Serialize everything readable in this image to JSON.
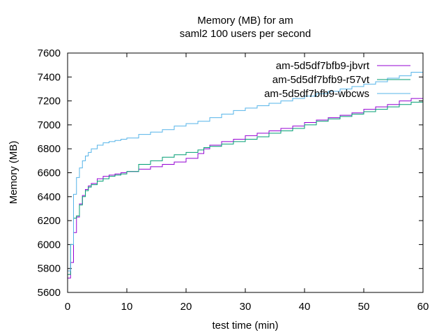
{
  "chart_data": {
    "type": "line",
    "title": "Memory (MB) for am",
    "subtitle": "saml2 100 users per second",
    "xlabel": "test time (min)",
    "ylabel": "Memory (MB)",
    "xlim": [
      0,
      60
    ],
    "ylim": [
      5600,
      7600
    ],
    "xticks": [
      0,
      10,
      20,
      30,
      40,
      50,
      60
    ],
    "yticks": [
      5600,
      5800,
      6000,
      6200,
      6400,
      6600,
      6800,
      7000,
      7200,
      7400,
      7600
    ],
    "grid": false,
    "legend_position": "top-right",
    "step": true,
    "series": [
      {
        "name": "am-5d5df7bfb9-jbvrt",
        "color": "#9400d3",
        "x": [
          0,
          0.5,
          1,
          1.5,
          2,
          2.5,
          3,
          3.5,
          4,
          5,
          6,
          7,
          8,
          9,
          10,
          12,
          14,
          16,
          18,
          20,
          22,
          23,
          24,
          26,
          28,
          30,
          32,
          34,
          36,
          38,
          40,
          42,
          44,
          46,
          48,
          50,
          52,
          54,
          56,
          58,
          60
        ],
        "y": [
          5720,
          5850,
          6100,
          6230,
          6340,
          6410,
          6460,
          6490,
          6510,
          6550,
          6570,
          6580,
          6590,
          6600,
          6610,
          6630,
          6650,
          6670,
          6690,
          6720,
          6760,
          6800,
          6830,
          6860,
          6880,
          6910,
          6930,
          6950,
          6970,
          6990,
          7020,
          7040,
          7060,
          7080,
          7100,
          7130,
          7150,
          7170,
          7200,
          7220,
          7240
        ]
      },
      {
        "name": "am-5d5df7bfb9-r57vt",
        "color": "#009e73",
        "x": [
          0,
          0.5,
          1,
          1.5,
          2,
          2.5,
          3,
          3.5,
          4,
          5,
          6,
          7,
          8,
          9,
          10,
          12,
          14,
          16,
          18,
          20,
          22,
          23,
          24,
          26,
          28,
          30,
          32,
          34,
          36,
          38,
          40,
          42,
          44,
          46,
          48,
          50,
          52,
          54,
          56,
          58,
          60
        ],
        "y": [
          5750,
          6000,
          6220,
          6240,
          6330,
          6400,
          6450,
          6480,
          6500,
          6530,
          6550,
          6570,
          6580,
          6590,
          6610,
          6670,
          6700,
          6730,
          6750,
          6770,
          6790,
          6810,
          6820,
          6840,
          6860,
          6880,
          6900,
          6930,
          6950,
          6970,
          7000,
          7030,
          7050,
          7070,
          7090,
          7110,
          7130,
          7150,
          7170,
          7190,
          7210
        ]
      },
      {
        "name": "am-5d5df7bfb9-wbcws",
        "color": "#56b4e9",
        "x": [
          0,
          0.5,
          1,
          1.5,
          2,
          2.5,
          3,
          3.5,
          4,
          5,
          6,
          7,
          8,
          9,
          10,
          12,
          14,
          16,
          18,
          20,
          22,
          24,
          26,
          28,
          30,
          32,
          34,
          36,
          38,
          40,
          42,
          44,
          46,
          48,
          50,
          52,
          54,
          56,
          58,
          60
        ],
        "y": [
          5780,
          6000,
          6420,
          6560,
          6640,
          6700,
          6740,
          6770,
          6800,
          6830,
          6850,
          6860,
          6870,
          6880,
          6890,
          6920,
          6940,
          6960,
          6990,
          7010,
          7030,
          7060,
          7090,
          7120,
          7140,
          7160,
          7180,
          7200,
          7220,
          7240,
          7260,
          7280,
          7300,
          7320,
          7340,
          7360,
          7390,
          7410,
          7440,
          7470
        ]
      }
    ]
  }
}
